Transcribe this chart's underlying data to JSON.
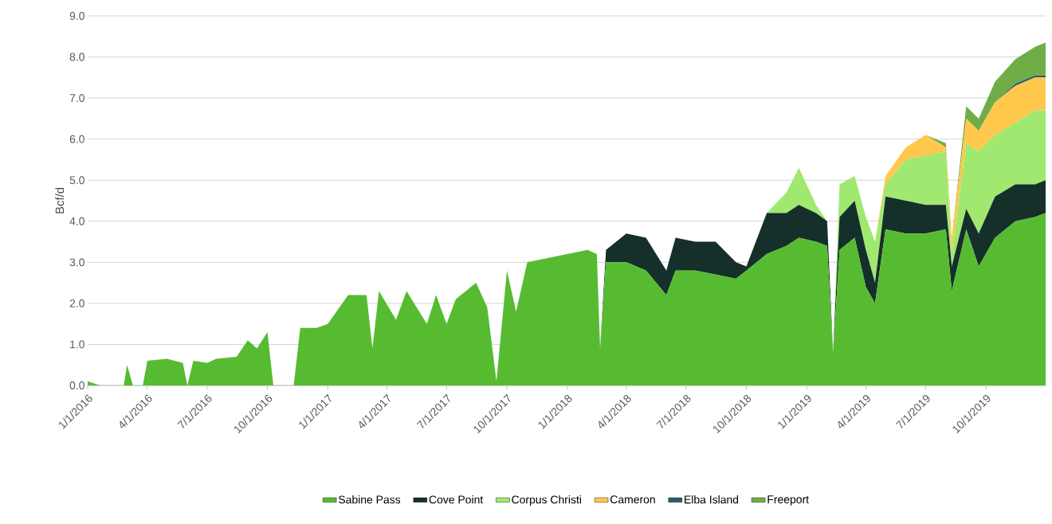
{
  "chart_data": {
    "type": "area",
    "stacked": true,
    "ylabel": "Bcf/d",
    "x": [
      "2016-01-01",
      "2016-01-20",
      "2016-02-25",
      "2016-03-01",
      "2016-03-10",
      "2016-03-25",
      "2016-04-01",
      "2016-05-01",
      "2016-05-25",
      "2016-06-01",
      "2016-06-10",
      "2016-07-01",
      "2016-07-15",
      "2016-08-15",
      "2016-09-01",
      "2016-09-15",
      "2016-10-01",
      "2016-10-10",
      "2016-11-10",
      "2016-11-20",
      "2016-12-15",
      "2017-01-01",
      "2017-02-01",
      "2017-03-01",
      "2017-03-10",
      "2017-03-20",
      "2017-04-15",
      "2017-05-01",
      "2017-06-01",
      "2017-06-15",
      "2017-07-01",
      "2017-07-15",
      "2017-08-15",
      "2017-09-01",
      "2017-09-15",
      "2017-10-01",
      "2017-10-15",
      "2017-11-01",
      "2017-12-01",
      "2018-01-01",
      "2018-02-01",
      "2018-02-15",
      "2018-02-20",
      "2018-03-01",
      "2018-04-01",
      "2018-05-01",
      "2018-06-01",
      "2018-06-15",
      "2018-07-15",
      "2018-08-15",
      "2018-09-15",
      "2018-10-01",
      "2018-11-01",
      "2018-12-01",
      "2018-12-20",
      "2019-01-15",
      "2019-02-01",
      "2019-02-10",
      "2019-02-20",
      "2019-03-15",
      "2019-04-01",
      "2019-04-15",
      "2019-05-01",
      "2019-06-01",
      "2019-07-01",
      "2019-08-01",
      "2019-08-10",
      "2019-09-01",
      "2019-09-20",
      "2019-10-15",
      "2019-11-15",
      "2019-12-15",
      "2019-12-31"
    ],
    "series": [
      {
        "name": "Sabine Pass",
        "color": "#57bb31",
        "values": [
          0.1,
          0,
          0,
          0.5,
          0,
          0,
          0.6,
          0.65,
          0.55,
          0,
          0.6,
          0.55,
          0.65,
          0.7,
          1.1,
          0.9,
          1.3,
          0,
          0,
          1.4,
          1.4,
          1.5,
          2.2,
          2.2,
          0.9,
          2.3,
          1.6,
          2.3,
          1.5,
          2.2,
          1.5,
          2.1,
          2.5,
          1.9,
          0.1,
          2.8,
          1.8,
          3.0,
          3.1,
          3.2,
          3.3,
          3.2,
          0.9,
          3.0,
          3.0,
          2.8,
          2.2,
          2.8,
          2.8,
          2.7,
          2.6,
          2.8,
          3.2,
          3.4,
          3.6,
          3.5,
          3.4,
          0.8,
          3.3,
          3.6,
          2.4,
          2.0,
          3.8,
          3.7,
          3.7,
          3.8,
          2.3,
          3.8,
          2.9,
          3.6,
          4.0,
          4.1,
          4.2
        ]
      },
      {
        "name": "Cove Point",
        "color": "#15302a",
        "values": [
          0,
          0,
          0,
          0,
          0,
          0,
          0,
          0,
          0,
          0,
          0,
          0,
          0,
          0,
          0,
          0,
          0,
          0,
          0,
          0,
          0,
          0,
          0,
          0,
          0,
          0,
          0,
          0,
          0,
          0,
          0,
          0,
          0,
          0,
          0,
          0,
          0,
          0,
          0,
          0,
          0,
          0,
          0,
          0.3,
          0.7,
          0.8,
          0.6,
          0.8,
          0.7,
          0.8,
          0.4,
          0.1,
          1.0,
          0.8,
          0.8,
          0.7,
          0.6,
          0,
          0.8,
          0.9,
          0.9,
          0.5,
          0.8,
          0.8,
          0.7,
          0.6,
          0.6,
          0.5,
          0.8,
          1.0,
          0.9,
          0.8,
          0.8
        ]
      },
      {
        "name": "Corpus Christi",
        "color": "#a0e86f",
        "values": [
          0,
          0,
          0,
          0,
          0,
          0,
          0,
          0,
          0,
          0,
          0,
          0,
          0,
          0,
          0,
          0,
          0,
          0,
          0,
          0,
          0,
          0,
          0,
          0,
          0,
          0,
          0,
          0,
          0,
          0,
          0,
          0,
          0,
          0,
          0,
          0,
          0,
          0,
          0,
          0,
          0,
          0,
          0,
          0,
          0,
          0,
          0,
          0,
          0,
          0,
          0,
          0,
          0,
          0.5,
          0.9,
          0.2,
          0,
          0,
          0.8,
          0.6,
          0.8,
          1.0,
          0.3,
          1.0,
          1.2,
          1.3,
          0.3,
          1.6,
          2.0,
          1.5,
          1.5,
          1.8,
          1.7
        ]
      },
      {
        "name": "Cameron",
        "color": "#ffc84c",
        "values": [
          0,
          0,
          0,
          0,
          0,
          0,
          0,
          0,
          0,
          0,
          0,
          0,
          0,
          0,
          0,
          0,
          0,
          0,
          0,
          0,
          0,
          0,
          0,
          0,
          0,
          0,
          0,
          0,
          0,
          0,
          0,
          0,
          0,
          0,
          0,
          0,
          0,
          0,
          0,
          0,
          0,
          0,
          0,
          0,
          0,
          0,
          0,
          0,
          0,
          0,
          0,
          0,
          0,
          0,
          0,
          0,
          0,
          0,
          0,
          0,
          0,
          0,
          0.2,
          0.3,
          0.5,
          0.1,
          0.4,
          0.6,
          0.5,
          0.8,
          0.9,
          0.8,
          0.8
        ]
      },
      {
        "name": "Elba Island",
        "color": "#2d5b6b",
        "values": [
          0,
          0,
          0,
          0,
          0,
          0,
          0,
          0,
          0,
          0,
          0,
          0,
          0,
          0,
          0,
          0,
          0,
          0,
          0,
          0,
          0,
          0,
          0,
          0,
          0,
          0,
          0,
          0,
          0,
          0,
          0,
          0,
          0,
          0,
          0,
          0,
          0,
          0,
          0,
          0,
          0,
          0,
          0,
          0,
          0,
          0,
          0,
          0,
          0,
          0,
          0,
          0,
          0,
          0,
          0,
          0,
          0,
          0,
          0,
          0,
          0,
          0,
          0,
          0,
          0,
          0,
          0,
          0,
          0,
          0,
          0.05,
          0.05,
          0.05
        ]
      },
      {
        "name": "Freeport",
        "color": "#70ad47",
        "values": [
          0,
          0,
          0,
          0,
          0,
          0,
          0,
          0,
          0,
          0,
          0,
          0,
          0,
          0,
          0,
          0,
          0,
          0,
          0,
          0,
          0,
          0,
          0,
          0,
          0,
          0,
          0,
          0,
          0,
          0,
          0,
          0,
          0,
          0,
          0,
          0,
          0,
          0,
          0,
          0,
          0,
          0,
          0,
          0,
          0,
          0,
          0,
          0,
          0,
          0,
          0,
          0,
          0,
          0,
          0,
          0,
          0,
          0,
          0,
          0,
          0,
          0,
          0,
          0,
          0,
          0.1,
          0,
          0.3,
          0.3,
          0.5,
          0.6,
          0.7,
          0.8
        ]
      }
    ],
    "xlim": [
      "2016-01-01",
      "2019-12-31"
    ],
    "xticks": [
      {
        "value": "2016-01-01",
        "label": "1/1/2016"
      },
      {
        "value": "2016-04-01",
        "label": "4/1/2016"
      },
      {
        "value": "2016-07-01",
        "label": "7/1/2016"
      },
      {
        "value": "2016-10-01",
        "label": "10/1/2016"
      },
      {
        "value": "2017-01-01",
        "label": "1/1/2017"
      },
      {
        "value": "2017-04-01",
        "label": "4/1/2017"
      },
      {
        "value": "2017-07-01",
        "label": "7/1/2017"
      },
      {
        "value": "2017-10-01",
        "label": "10/1/2017"
      },
      {
        "value": "2018-01-01",
        "label": "1/1/2018"
      },
      {
        "value": "2018-04-01",
        "label": "4/1/2018"
      },
      {
        "value": "2018-07-01",
        "label": "7/1/2018"
      },
      {
        "value": "2018-10-01",
        "label": "10/1/2018"
      },
      {
        "value": "2019-01-01",
        "label": "1/1/2019"
      },
      {
        "value": "2019-04-01",
        "label": "4/1/2019"
      },
      {
        "value": "2019-07-01",
        "label": "7/1/2019"
      },
      {
        "value": "2019-10-01",
        "label": "10/1/2019"
      }
    ],
    "ylim": [
      0,
      9
    ],
    "yticks": [
      {
        "value": 0,
        "label": "0.0"
      },
      {
        "value": 1,
        "label": "1.0"
      },
      {
        "value": 2,
        "label": "2.0"
      },
      {
        "value": 3,
        "label": "3.0"
      },
      {
        "value": 4,
        "label": "4.0"
      },
      {
        "value": 5,
        "label": "5.0"
      },
      {
        "value": 6,
        "label": "6.0"
      },
      {
        "value": 7,
        "label": "7.0"
      },
      {
        "value": 8,
        "label": "8.0"
      },
      {
        "value": 9,
        "label": "9.0"
      }
    ],
    "grid": "y",
    "legend": "bottom"
  }
}
